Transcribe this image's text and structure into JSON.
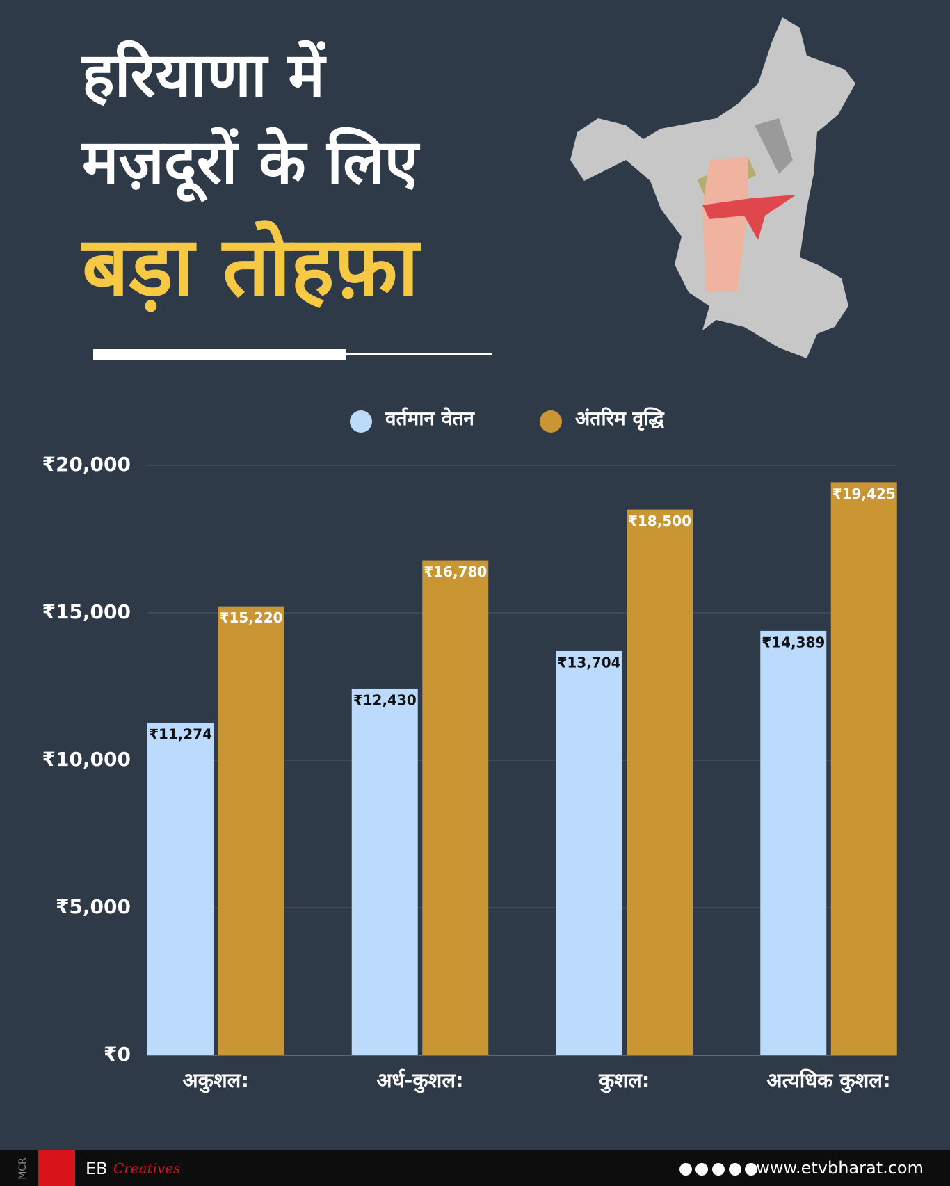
{
  "chart_data": {
    "type": "bar",
    "title": [
      "हरियाणा में",
      "मज़दूरों के लिए",
      "बड़ा तोहफ़ा"
    ],
    "categories": [
      "अकुशल:",
      "अर्ध-कुशल:",
      "कुशल:",
      "अत्यधिक कुशल:"
    ],
    "series": [
      {
        "name": "वर्तमान वेतन",
        "color": "#bcdafc",
        "values": [
          11274,
          12430,
          13704,
          14389
        ],
        "value_labels": [
          "₹11,274",
          "₹12,430",
          "₹13,704",
          "₹14,389"
        ]
      },
      {
        "name": "अंतरिम वृद्धि",
        "color": "#c99633",
        "values": [
          15220,
          16780,
          18500,
          19425
        ],
        "value_labels": [
          "₹15,220",
          "₹16,780",
          "₹18,500",
          "₹19,425"
        ]
      }
    ],
    "ylim": [
      0,
      20000
    ],
    "yticks": [
      {
        "value": 0,
        "label": "₹0"
      },
      {
        "value": 5000,
        "label": "₹5,000"
      },
      {
        "value": 10000,
        "label": "₹10,000"
      },
      {
        "value": 15000,
        "label": "₹15,000"
      },
      {
        "value": 20000,
        "label": "₹20,000"
      }
    ],
    "grid": true,
    "legend": "top"
  },
  "footer": {
    "credit": "MCR",
    "brand": "EB",
    "brand_suffix": "Creatives",
    "website": "www.etvbharat.com"
  }
}
